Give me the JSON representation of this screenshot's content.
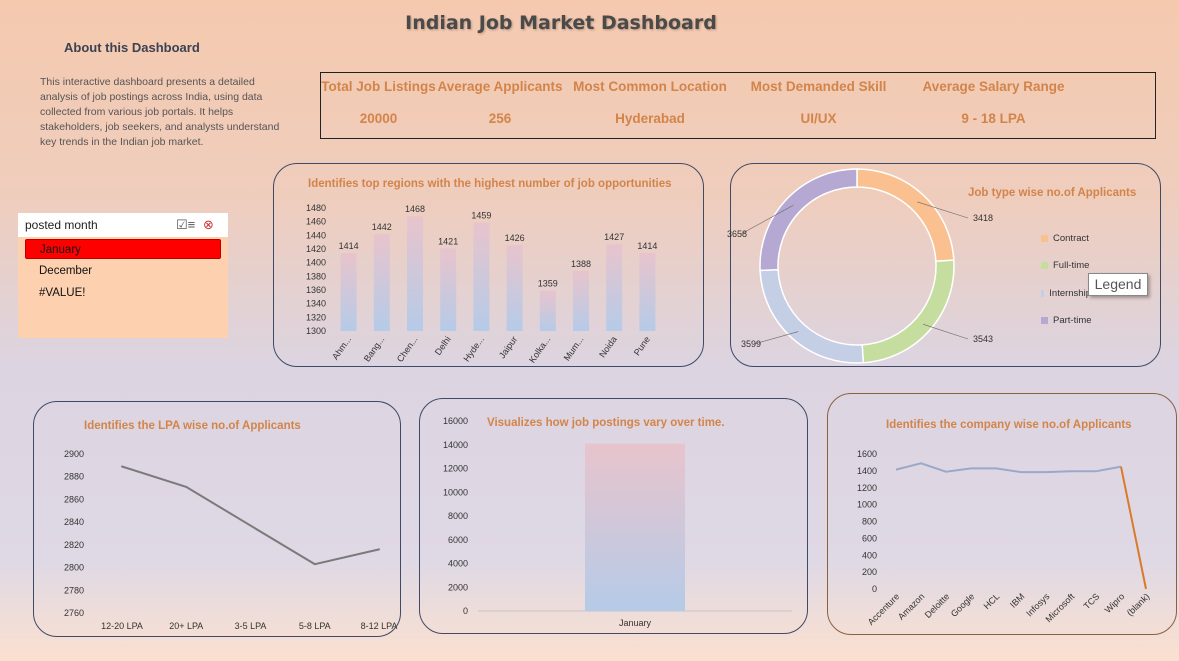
{
  "title": "Indian Job Market Dashboard",
  "about": {
    "heading": "About this Dashboard",
    "text": "This interactive dashboard presents a detailed analysis of job postings across India, using data collected from various job portals. It helps stakeholders, job seekers, and analysts understand key trends in the Indian job market."
  },
  "kpis": [
    {
      "label": "Total Job Listings",
      "value": "20000"
    },
    {
      "label": "Average Applicants",
      "value": "256"
    },
    {
      "label": "Most Common Location",
      "value": "Hyderabad"
    },
    {
      "label": "Most Demanded Skill",
      "value": "UI/UX"
    },
    {
      "label": "Average Salary Range",
      "value": "9 - 18 LPA"
    }
  ],
  "slicer": {
    "title": "posted month",
    "items": [
      "January",
      "December",
      "#VALUE!"
    ],
    "selected": "January"
  },
  "tooltip": "Legend",
  "colors": {
    "accent": "#d2844a",
    "border": "#3f4a66"
  },
  "chart_data": [
    {
      "id": "regions",
      "type": "bar",
      "title": "Identifies top regions with the highest number of job opportunities",
      "categories": [
        "Ahm...",
        "Bang...",
        "Chen...",
        "Delhi",
        "Hyde...",
        "Jaipur",
        "Kolka...",
        "Mum...",
        "Noida",
        "Pune"
      ],
      "values": [
        1414,
        1442,
        1468,
        1421,
        1459,
        1426,
        1359,
        1388,
        1427,
        1414
      ],
      "ylim": [
        1300,
        1480
      ],
      "yticks": [
        1300,
        1320,
        1340,
        1360,
        1380,
        1400,
        1420,
        1440,
        1460,
        1480
      ],
      "data_labels": true
    },
    {
      "id": "jobtype",
      "type": "pie",
      "title": "Job type wise no.of Applicants",
      "categories": [
        "Contract",
        "Full-time",
        "Internship",
        "Part-time"
      ],
      "values": [
        3418,
        3543,
        3599,
        3658
      ],
      "colors": [
        "#fbc08f",
        "#c5dea0",
        "#c4cfe6",
        "#b5a8d2"
      ],
      "legend": "right"
    },
    {
      "id": "lpa",
      "type": "line",
      "title": "Identifies the LPA wise no.of Applicants",
      "categories": [
        "12-20 LPA",
        "20+ LPA",
        "3-5 LPA",
        "5-8 LPA",
        "8-12 LPA"
      ],
      "values": [
        2889,
        2871,
        2837,
        2803,
        2816
      ],
      "ylim": [
        2760,
        2900
      ],
      "yticks": [
        2760,
        2780,
        2800,
        2820,
        2840,
        2860,
        2880,
        2900
      ]
    },
    {
      "id": "time",
      "type": "bar",
      "title": "Visualizes how job postings vary over time.",
      "categories": [
        "January"
      ],
      "values": [
        14100
      ],
      "ylim": [
        0,
        16000
      ],
      "yticks": [
        0,
        2000,
        4000,
        6000,
        8000,
        10000,
        12000,
        14000,
        16000
      ]
    },
    {
      "id": "company",
      "type": "line",
      "title": "Identifies the company wise no.of Applicants",
      "categories": [
        "Accenture",
        "Amazon",
        "Deloitte",
        "Google",
        "HCL",
        "IBM",
        "Infosys",
        "Microsoft",
        "TCS",
        "Wipro",
        "(blank)"
      ],
      "values": [
        1415,
        1490,
        1390,
        1430,
        1430,
        1385,
        1385,
        1395,
        1395,
        1450,
        0
      ],
      "ylim": [
        0,
        1600
      ],
      "yticks": [
        0,
        200,
        400,
        600,
        800,
        1000,
        1200,
        1400,
        1600
      ]
    }
  ]
}
